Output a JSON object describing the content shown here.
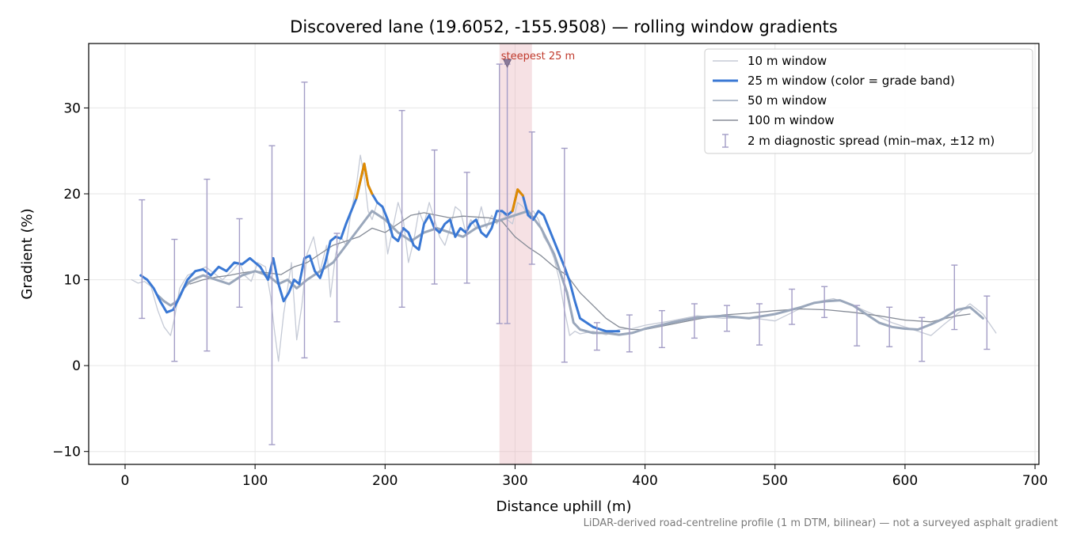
{
  "chart_data": {
    "type": "line",
    "title": "Discovered lane (19.6052, -155.9508) — rolling window gradients",
    "xlabel": "Distance uphill (m)",
    "ylabel": "Gradient (%)",
    "footnote": "LiDAR-derived road-centreline profile (1 m DTM, bilinear) — not a surveyed asphalt gradient",
    "xlim": [
      -28,
      703
    ],
    "ylim": [
      -11.5,
      37.5
    ],
    "xticks": [
      0,
      100,
      200,
      300,
      400,
      500,
      600,
      700
    ],
    "yticks": [
      -10,
      0,
      10,
      20,
      30
    ],
    "xtick_labels": [
      "0",
      "100",
      "200",
      "300",
      "400",
      "500",
      "600",
      "700"
    ],
    "ytick_labels": [
      "−10",
      "0",
      "10",
      "20",
      "30"
    ],
    "grid": true,
    "legend_position": "top-right",
    "colors": {
      "w10": "#c5cad6",
      "w25": "#3a78d4",
      "w25_steep": "#e08a00",
      "w50": "#9aa7bb",
      "w100": "#858b96",
      "errorbar": "#a39dc6",
      "highlight": "#e8b4bb",
      "marker": "#8a7a9a"
    },
    "highlight_band": {
      "x_range": [
        288,
        313
      ],
      "label": "steepest 25 m",
      "marker_x": 294,
      "marker_y": 35.2
    },
    "series": [
      {
        "name": "10 m window",
        "x": [
          5,
          10,
          15,
          20,
          25,
          30,
          35,
          38,
          42,
          48,
          55,
          62,
          68,
          75,
          82,
          88,
          92,
          97,
          102,
          108,
          112,
          115,
          118,
          122,
          125,
          128,
          132,
          136,
          140,
          145,
          150,
          155,
          158,
          162,
          166,
          170,
          174,
          178,
          181,
          184,
          187,
          190,
          194,
          198,
          202,
          206,
          210,
          214,
          218,
          222,
          226,
          230,
          234,
          238,
          242,
          246,
          250,
          254,
          258,
          262,
          266,
          270,
          274,
          278,
          282,
          286,
          290,
          294,
          298,
          302,
          306,
          310,
          314,
          318,
          322,
          326,
          330,
          334,
          338,
          342,
          346,
          350,
          360,
          370,
          380,
          390,
          400,
          420,
          440,
          460,
          480,
          500,
          520,
          535,
          545,
          560,
          575,
          590,
          600,
          610,
          620,
          630,
          640,
          650,
          660,
          670
        ],
        "y": [
          10,
          9.6,
          9.8,
          9.2,
          6.5,
          4.5,
          3.5,
          5.5,
          9,
          10.5,
          11,
          11.5,
          10.8,
          10,
          11,
          12,
          10.5,
          9.8,
          12,
          11.5,
          8,
          4,
          0.5,
          6,
          9,
          12,
          3,
          7,
          13,
          15,
          11,
          14,
          8,
          13,
          15,
          14,
          18,
          21,
          24.5,
          22,
          18,
          17,
          19,
          18.5,
          13,
          16,
          19,
          17,
          12,
          14.5,
          18,
          16.5,
          19,
          17,
          15,
          14,
          16,
          18.5,
          18,
          15.5,
          17,
          16,
          18.5,
          16,
          17.5,
          16.5,
          18,
          17,
          16.5,
          19,
          18.5,
          17.5,
          18,
          17,
          15,
          14,
          12.5,
          10,
          6.5,
          3.5,
          4,
          3.7,
          4,
          3.6,
          4.2,
          4.3,
          4.7,
          5.2,
          5.8,
          5.5,
          5.6,
          5.2,
          6.7,
          7.5,
          7.8,
          7,
          6,
          5,
          4.5,
          4,
          3.5,
          4.8,
          6,
          7.2,
          6,
          3.8
        ]
      },
      {
        "name": "25 m window (color = grade band)",
        "x": [
          12,
          17,
          22,
          27,
          32,
          37,
          42,
          48,
          54,
          60,
          66,
          72,
          78,
          84,
          90,
          96,
          100,
          104,
          110,
          114,
          118,
          122,
          126,
          130,
          134,
          138,
          142,
          146,
          150,
          154,
          158,
          162,
          166,
          170,
          174,
          178,
          181,
          184,
          187,
          190,
          194,
          198,
          202,
          206,
          210,
          214,
          218,
          222,
          226,
          230,
          234,
          238,
          242,
          246,
          250,
          254,
          258,
          262,
          266,
          270,
          274,
          278,
          282,
          286,
          290,
          294,
          298,
          302,
          306,
          310,
          314,
          318,
          322,
          326,
          330,
          334,
          338,
          342,
          346,
          350,
          360,
          370,
          380
        ],
        "y": [
          10.5,
          10,
          9,
          7.5,
          6.2,
          6.5,
          8,
          10,
          11,
          11.2,
          10.5,
          11.5,
          11,
          12,
          11.8,
          12.5,
          12,
          11.5,
          10,
          12.5,
          9.5,
          7.5,
          8.5,
          10,
          9.5,
          12.5,
          12.8,
          11,
          10.2,
          12,
          14.5,
          15,
          14.8,
          16.5,
          18,
          19.5,
          21.5,
          23.5,
          21,
          20,
          19,
          18.5,
          17,
          15,
          14.5,
          16,
          15.5,
          14,
          13.5,
          16.5,
          17.5,
          16,
          15.5,
          16.5,
          17,
          15,
          16,
          15.5,
          16.5,
          17,
          15.5,
          15,
          16,
          18,
          18,
          17.5,
          18,
          20.5,
          19.8,
          17.5,
          17,
          18,
          17.5,
          16,
          14.5,
          13,
          11.5,
          9.8,
          7.5,
          5.5,
          4.5,
          4,
          4
        ]
      },
      {
        "name": "50 m window",
        "x": [
          25,
          30,
          35,
          40,
          45,
          50,
          55,
          60,
          70,
          80,
          90,
          100,
          110,
          118,
          125,
          132,
          140,
          150,
          160,
          170,
          180,
          190,
          200,
          210,
          220,
          230,
          240,
          250,
          260,
          270,
          280,
          290,
          300,
          310,
          320,
          330,
          340,
          345,
          350,
          360,
          370,
          380,
          390,
          400,
          420,
          440,
          460,
          480,
          500,
          520,
          530,
          540,
          550,
          560,
          570,
          580,
          590,
          600,
          610,
          620,
          630,
          640,
          650,
          660
        ],
        "y": [
          8.2,
          7.5,
          7,
          7.5,
          9,
          9.8,
          10.2,
          10.5,
          10,
          9.5,
          10.5,
          11,
          10.5,
          9.5,
          10,
          9,
          10,
          11,
          12,
          14,
          16,
          18,
          17,
          15.5,
          14.5,
          15.5,
          16,
          15.5,
          15,
          16,
          16.5,
          17,
          17.5,
          18,
          16,
          13,
          8.5,
          5,
          4.2,
          3.8,
          3.8,
          3.6,
          3.8,
          4.3,
          5,
          5.6,
          5.8,
          5.5,
          6,
          6.8,
          7.3,
          7.5,
          7.6,
          7,
          6,
          5,
          4.5,
          4.3,
          4.2,
          4.8,
          5.5,
          6.5,
          6.8,
          5.5
        ]
      },
      {
        "name": "100 m window",
        "x": [
          50,
          60,
          70,
          80,
          90,
          100,
          110,
          120,
          130,
          140,
          150,
          160,
          170,
          180,
          190,
          200,
          210,
          220,
          230,
          240,
          250,
          260,
          270,
          280,
          290,
          300,
          310,
          320,
          330,
          340,
          350,
          360,
          370,
          380,
          390,
          400,
          420,
          440,
          460,
          480,
          500,
          520,
          540,
          560,
          580,
          600,
          620,
          640,
          650
        ],
        "y": [
          9.5,
          10,
          10.3,
          10.5,
          10.8,
          11,
          10.8,
          10.6,
          11.5,
          12,
          13,
          14,
          14.5,
          15,
          16,
          15.5,
          16.5,
          17.5,
          17.8,
          17.5,
          17.2,
          17.4,
          17.3,
          17.2,
          16.8,
          15,
          13.8,
          12.8,
          11.5,
          10.5,
          8.5,
          7,
          5.5,
          4.5,
          4.2,
          4.2,
          4.8,
          5.4,
          5.9,
          6.1,
          6.4,
          6.6,
          6.5,
          6.2,
          5.8,
          5.3,
          5.1,
          5.8,
          6
        ]
      }
    ],
    "errorbars": {
      "name": "2 m diagnostic spread (min–max, ±12 m)",
      "points": [
        {
          "x": 13,
          "min": 5.5,
          "max": 19.3
        },
        {
          "x": 38,
          "min": 0.5,
          "max": 14.7
        },
        {
          "x": 63,
          "min": 1.7,
          "max": 21.7
        },
        {
          "x": 88,
          "min": 6.8,
          "max": 17.1
        },
        {
          "x": 113,
          "min": -9.2,
          "max": 25.6
        },
        {
          "x": 138,
          "min": 0.9,
          "max": 33.0
        },
        {
          "x": 163,
          "min": 5.1,
          "max": 15.4
        },
        {
          "x": 213,
          "min": 6.8,
          "max": 29.7
        },
        {
          "x": 238,
          "min": 9.5,
          "max": 25.1
        },
        {
          "x": 263,
          "min": 9.6,
          "max": 22.5
        },
        {
          "x": 288,
          "min": 4.9,
          "max": 35.1
        },
        {
          "x": 294,
          "min": 4.9,
          "max": 35.1
        },
        {
          "x": 313,
          "min": 11.8,
          "max": 27.2
        },
        {
          "x": 338,
          "min": 0.4,
          "max": 25.3
        },
        {
          "x": 363,
          "min": 1.8,
          "max": 5.0
        },
        {
          "x": 388,
          "min": 1.6,
          "max": 5.9
        },
        {
          "x": 413,
          "min": 2.1,
          "max": 6.4
        },
        {
          "x": 438,
          "min": 3.2,
          "max": 7.2
        },
        {
          "x": 463,
          "min": 4.0,
          "max": 7.0
        },
        {
          "x": 488,
          "min": 2.4,
          "max": 7.2
        },
        {
          "x": 513,
          "min": 4.8,
          "max": 8.9
        },
        {
          "x": 538,
          "min": 5.6,
          "max": 9.2
        },
        {
          "x": 563,
          "min": 2.3,
          "max": 7.0
        },
        {
          "x": 588,
          "min": 2.2,
          "max": 6.8
        },
        {
          "x": 613,
          "min": 0.5,
          "max": 5.6
        },
        {
          "x": 638,
          "min": 4.2,
          "max": 11.7
        },
        {
          "x": 663,
          "min": 1.9,
          "max": 8.1
        }
      ]
    }
  }
}
